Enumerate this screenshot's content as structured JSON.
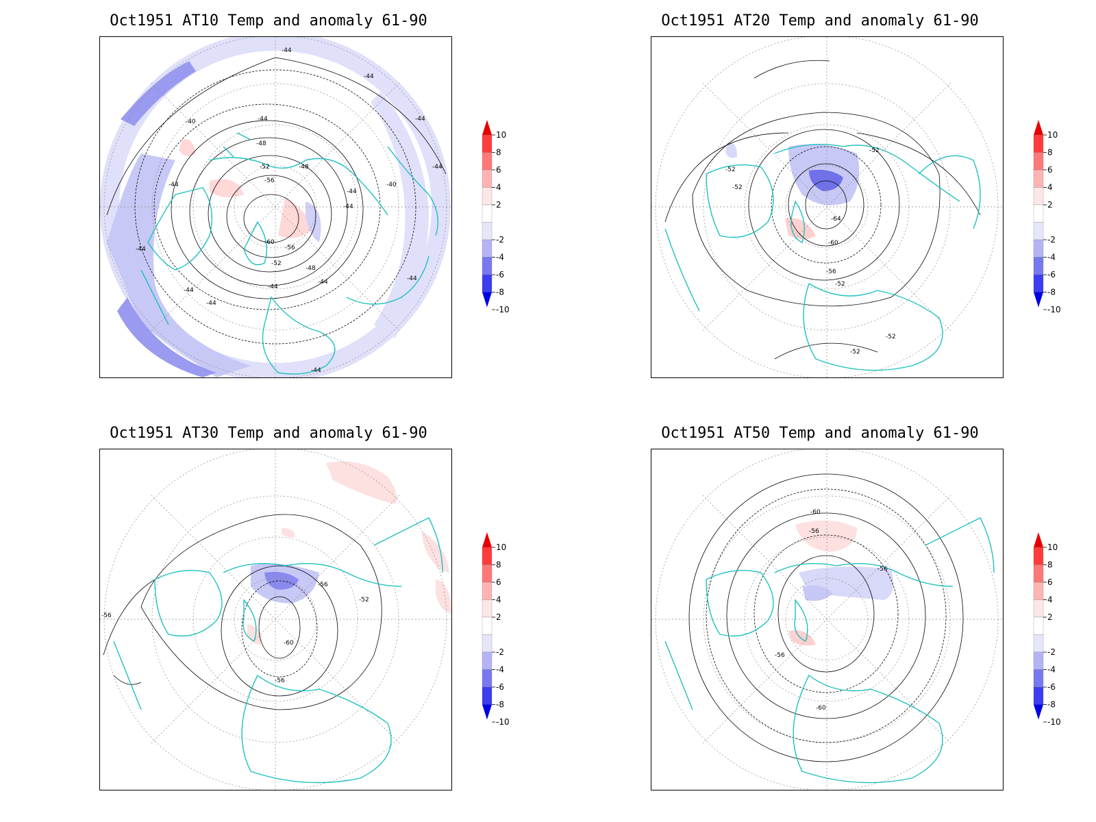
{
  "panels": [
    {
      "title": "Oct1951 AT10 Temp and anomaly 61-90",
      "contour_labels": [
        "-44",
        "-44",
        "-44",
        "-40",
        "-44",
        "-44",
        "-48",
        "-48",
        "-52",
        "-56",
        "-44",
        "-44",
        "-44",
        "-40",
        "-44",
        "-44",
        "-60",
        "-56",
        "-52",
        "-48",
        "-44",
        "-44",
        "-44",
        "-44",
        "-44"
      ],
      "anomaly": "mostly negative (-2 to -6) across outer ring and mid-latitudes, small positive (+2) patches near North America"
    },
    {
      "title": "Oct1951 AT20 Temp and anomaly 61-90",
      "contour_labels": [
        "-52",
        "-52",
        "-52",
        "-64",
        "-60",
        "-56",
        "-52",
        "-52",
        "-52"
      ],
      "anomaly": "negative (-2 to -8) centered north of Greenland, small positive (+2) near Hudson Bay"
    },
    {
      "title": "Oct1951 AT30 Temp and anomaly 61-90",
      "contour_labels": [
        "-56",
        "-52",
        "-60",
        "-56",
        "-56"
      ],
      "anomaly": "negative (-2 to -6) north of Greenland, positive (+2) patches over western Pacific and near Hudson Bay"
    },
    {
      "title": "Oct1951 AT50 Temp and anomaly 61-90",
      "contour_labels": [
        "-60",
        "-56",
        "-56",
        "-56",
        "-60"
      ],
      "anomaly": "negative (-2 to -4) over Arctic Canada, positive (+2) over eastern Siberia and near Hudson Bay"
    }
  ],
  "colorbar": {
    "labels": [
      "10",
      "8",
      "6",
      "4",
      "2",
      "-2",
      "-4",
      "-6",
      "-8",
      "-10"
    ],
    "colors": [
      "#e60000",
      "#ff3c3c",
      "#ff7878",
      "#ffb4b4",
      "#fde6e6",
      "#ffffff",
      "#e6e6fb",
      "#b4b4f5",
      "#7878f0",
      "#3c3cf0",
      "#0000e6"
    ]
  },
  "colors": {
    "coast": "#20c0c0",
    "grid": "#888888",
    "contour": "#000000"
  }
}
